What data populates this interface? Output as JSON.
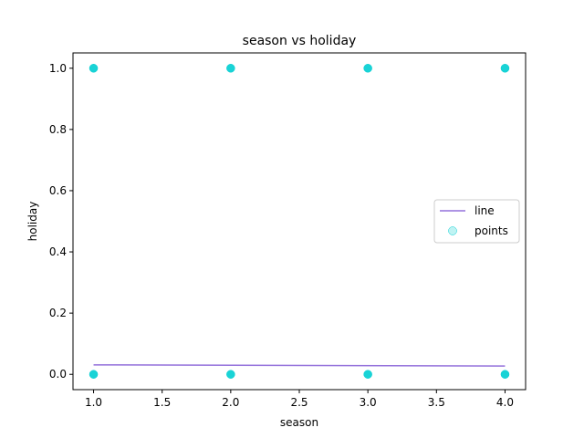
{
  "chart_data": {
    "type": "scatter",
    "title": "season vs holiday",
    "xlabel": "season",
    "ylabel": "holiday",
    "xlim": [
      0.85,
      4.15
    ],
    "ylim": [
      -0.05,
      1.05
    ],
    "xticks": [
      1.0,
      1.5,
      2.0,
      2.5,
      3.0,
      3.5,
      4.0
    ],
    "xtick_labels": [
      "1.0",
      "1.5",
      "2.0",
      "2.5",
      "3.0",
      "3.5",
      "4.0"
    ],
    "yticks": [
      0.0,
      0.2,
      0.4,
      0.6,
      0.8,
      1.0
    ],
    "ytick_labels": [
      "0.0",
      "0.2",
      "0.4",
      "0.6",
      "0.8",
      "1.0"
    ],
    "grid": false,
    "legend_position": "center-right",
    "series": [
      {
        "name": "line",
        "kind": "line",
        "color": "#9370DB",
        "x": [
          1.0,
          4.0
        ],
        "y": [
          0.031,
          0.027
        ]
      },
      {
        "name": "points",
        "kind": "scatter",
        "color": "#00CED1",
        "x": [
          1.0,
          1.0,
          2.0,
          2.0,
          3.0,
          3.0,
          4.0,
          4.0
        ],
        "y": [
          0.0,
          1.0,
          0.0,
          1.0,
          0.0,
          1.0,
          0.0,
          1.0
        ]
      }
    ]
  }
}
